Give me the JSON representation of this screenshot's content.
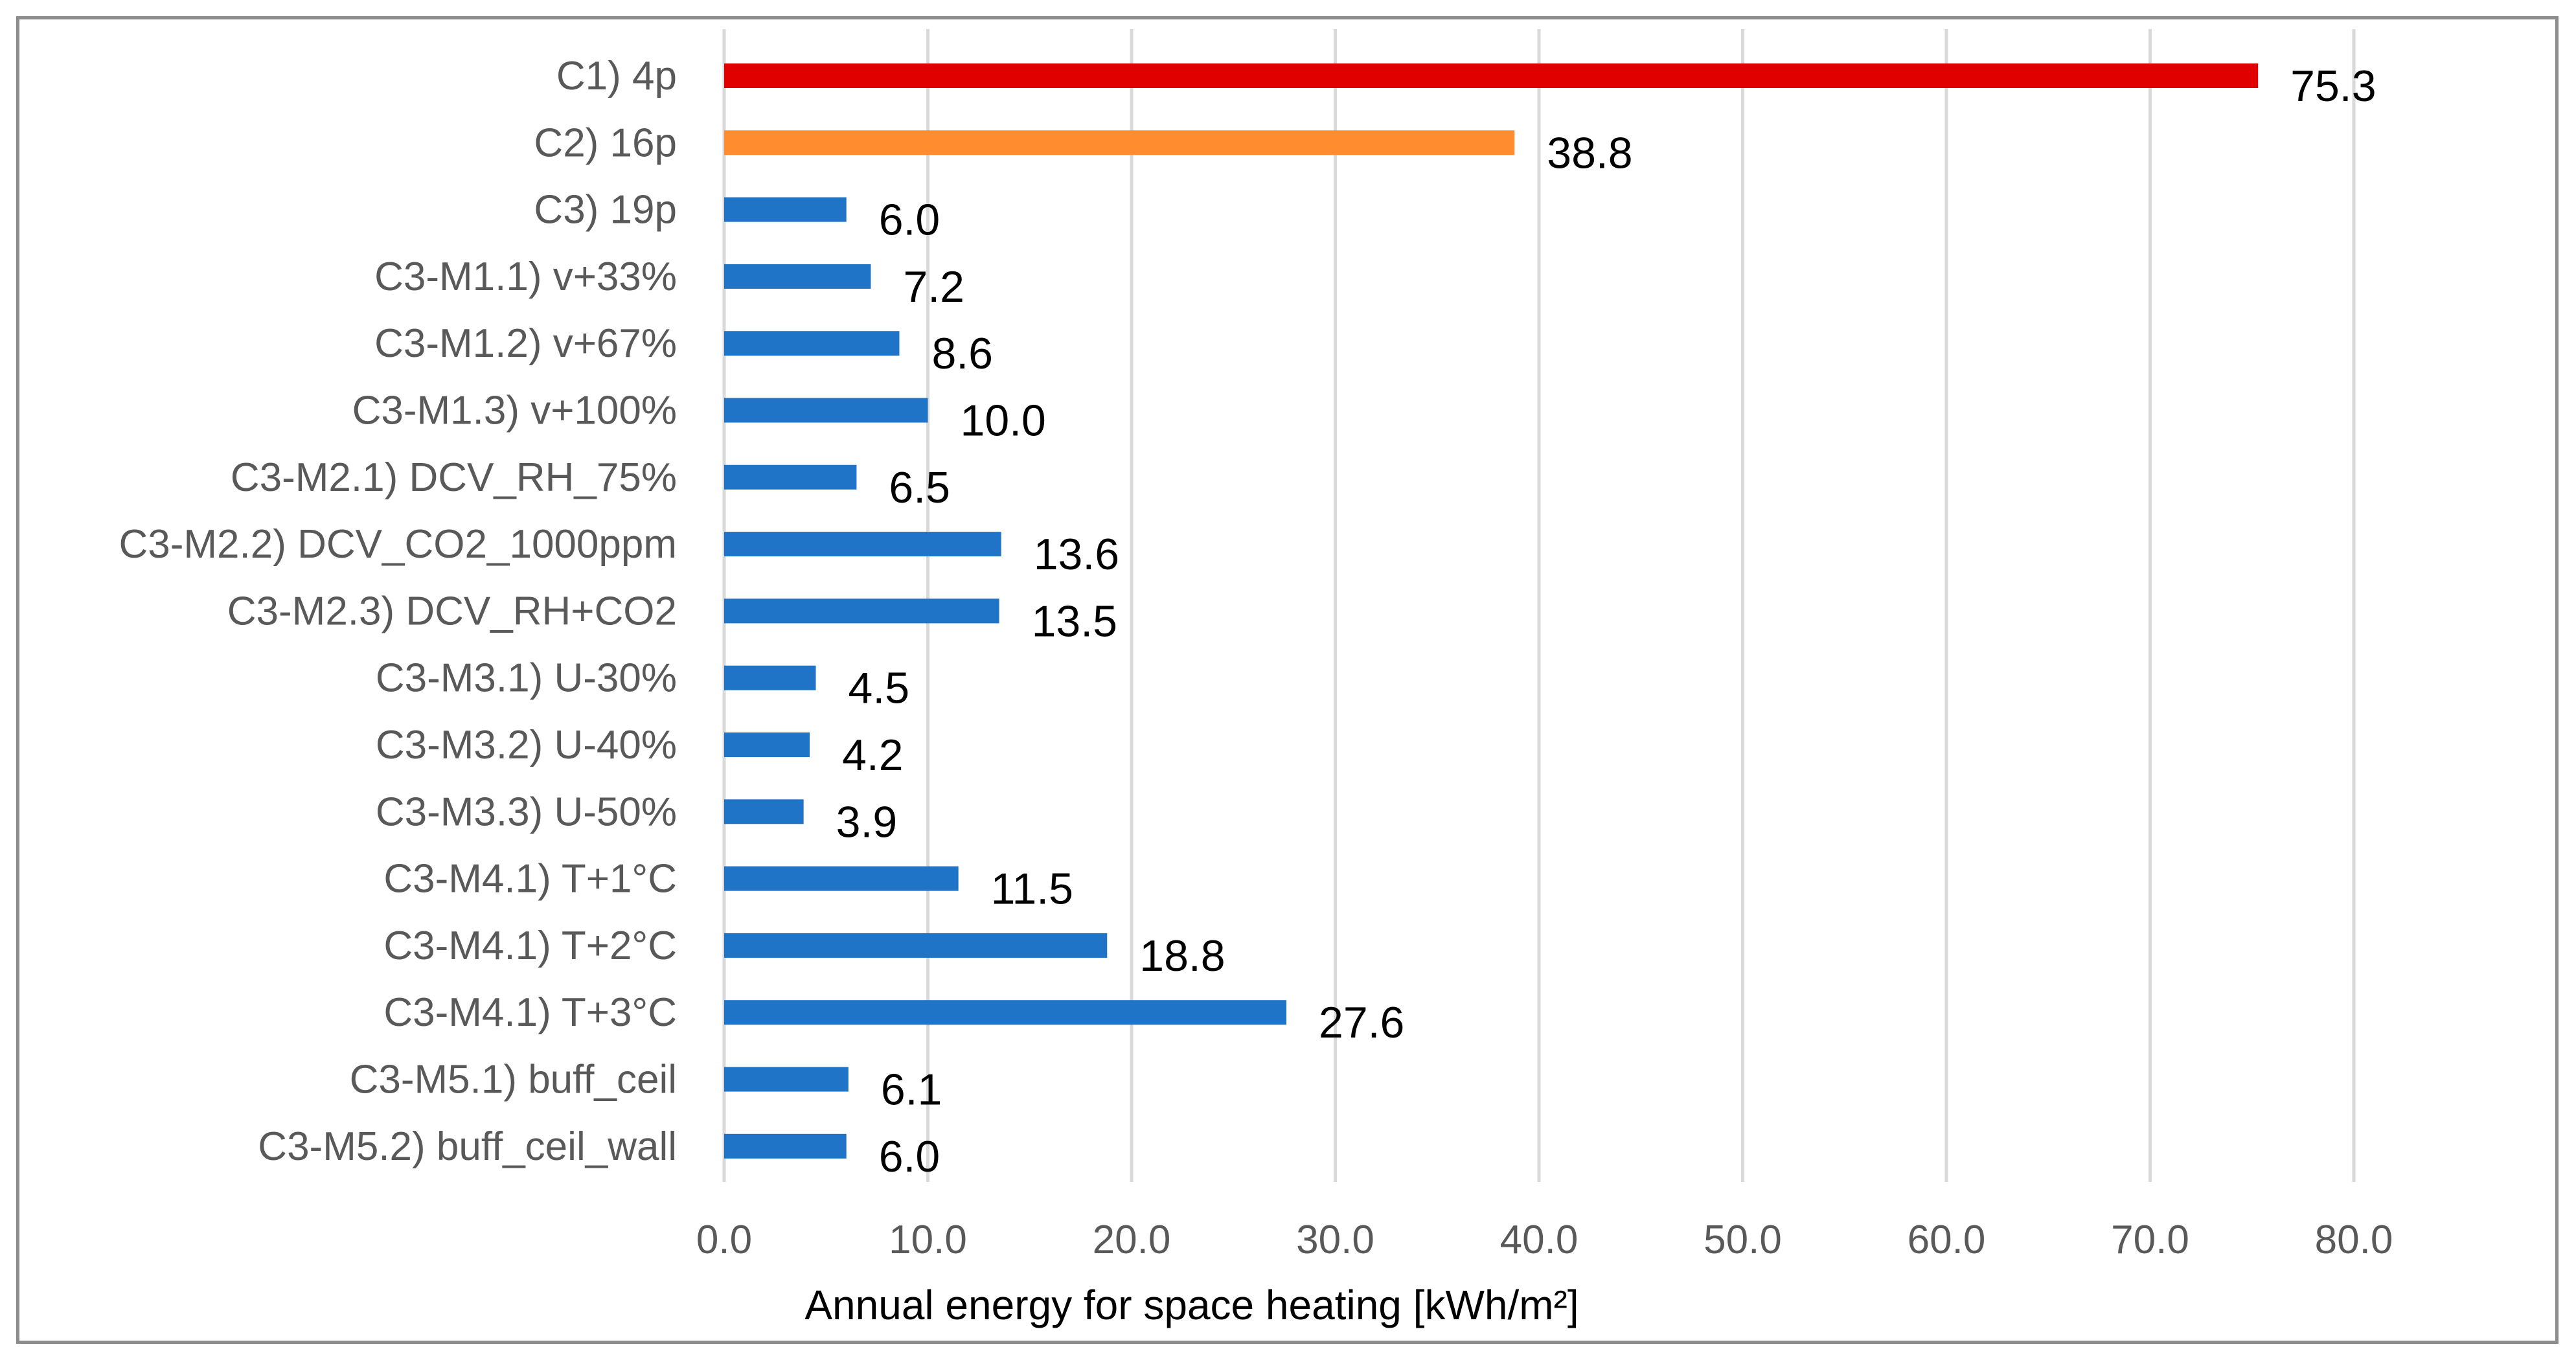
{
  "chart_data": {
    "type": "bar",
    "orientation": "horizontal",
    "title": "",
    "xlabel": "Annual energy for space heating [kWh/m²]",
    "ylabel": "",
    "xlim": [
      0,
      80
    ],
    "xticks": [
      0,
      10,
      20,
      30,
      40,
      50,
      60,
      70,
      80
    ],
    "xtick_labels": [
      "0.0",
      "10.0",
      "20.0",
      "30.0",
      "40.0",
      "50.0",
      "60.0",
      "70.0",
      "80.0"
    ],
    "grid": "vertical",
    "legend": "none",
    "categories": [
      "C1) 4p",
      "C2) 16p",
      "C3) 19p",
      "C3-M1.1) v+33%",
      "C3-M1.2) v+67%",
      "C3-M1.3) v+100%",
      "C3-M2.1) DCV_RH_75%",
      "C3-M2.2) DCV_CO2_1000ppm",
      "C3-M2.3) DCV_RH+CO2",
      "C3-M3.1) U-30%",
      "C3-M3.2) U-40%",
      "C3-M3.3) U-50%",
      "C3-M4.1) T+1°C",
      "C3-M4.1) T+2°C",
      "C3-M4.1) T+3°C",
      "C3-M5.1) buff_ceil",
      "C3-M5.2) buff_ceil_wall"
    ],
    "values": [
      75.3,
      38.8,
      6.0,
      7.2,
      8.6,
      10.0,
      6.5,
      13.6,
      13.5,
      4.5,
      4.2,
      3.9,
      11.5,
      18.8,
      27.6,
      6.1,
      6.0
    ],
    "value_labels": [
      "75.3",
      "38.8",
      "6.0",
      "7.2",
      "8.6",
      "10.0",
      "6.5",
      "13.6",
      "13.5",
      "4.5",
      "4.2",
      "3.9",
      "11.5",
      "18.8",
      "27.6",
      "6.1",
      "6.0"
    ],
    "bar_colors": [
      "#e00000",
      "#ff8c2e",
      "#1f74c8",
      "#1f74c8",
      "#1f74c8",
      "#1f74c8",
      "#1f74c8",
      "#1f74c8",
      "#1f74c8",
      "#1f74c8",
      "#1f74c8",
      "#1f74c8",
      "#1f74c8",
      "#1f74c8",
      "#1f74c8",
      "#1f74c8",
      "#1f74c8"
    ]
  },
  "colors": {
    "grid": "#d9d9d9",
    "frame": "#8c8c8c",
    "category_text": "#595959",
    "value_text": "#000000"
  }
}
